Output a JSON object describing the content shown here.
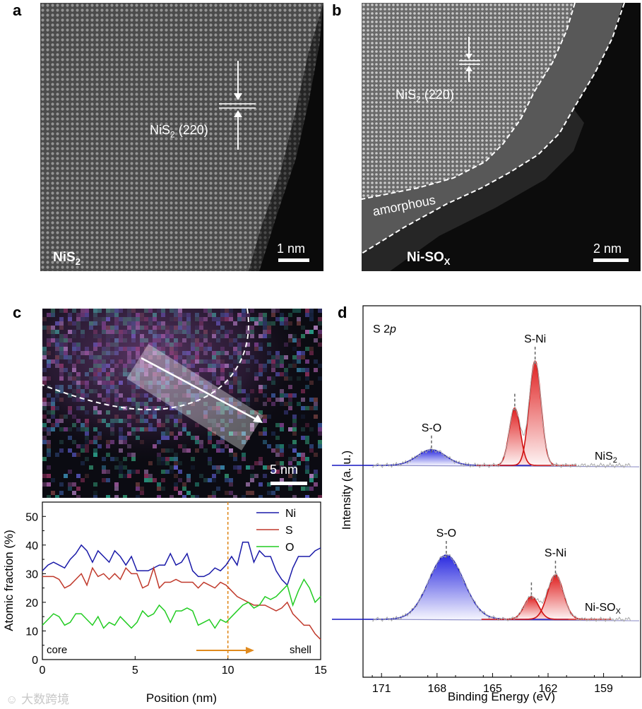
{
  "panels": {
    "a": {
      "letter": "a",
      "sample_label": "NiS",
      "sample_sub": "2",
      "plane_label": "NiS",
      "plane_sub": "2",
      "plane_index": " (220)",
      "scale_label": "1 nm"
    },
    "b": {
      "letter": "b",
      "sample_label": "Ni-SO",
      "sample_sub": "X",
      "plane_label": "NiS",
      "plane_sub": "2",
      "plane_index": " (220)",
      "region_label": "amorphous",
      "scale_label": "2 nm"
    },
    "c": {
      "letter": "c",
      "scale_label": "5 nm"
    },
    "d": {
      "letter": "d"
    }
  },
  "watermark": "大数跨境",
  "colors": {
    "ni": "#1a1aa8",
    "s": "#c0392b",
    "o": "#22cc22",
    "orange": "#e08a1e",
    "so_fill": "#2a2ae0",
    "sni_fill": "#e02020"
  },
  "chart_data": [
    {
      "type": "line",
      "xlabel": "Position (nm)",
      "ylabel": "Atomic fraction (%)",
      "xlim": [
        0,
        15
      ],
      "ylim": [
        0,
        55
      ],
      "xticks": [
        "0",
        "5",
        "10",
        "15"
      ],
      "yticks": [
        "0",
        "10",
        "20",
        "30",
        "40",
        "50"
      ],
      "annotations": {
        "left": "core",
        "right": "shell",
        "marker_x": 10
      },
      "x": [
        0,
        0.3,
        0.6,
        0.9,
        1.2,
        1.5,
        1.8,
        2.1,
        2.4,
        2.7,
        3.0,
        3.3,
        3.6,
        3.9,
        4.2,
        4.5,
        4.8,
        5.1,
        5.4,
        5.7,
        6.0,
        6.3,
        6.6,
        6.9,
        7.2,
        7.5,
        7.8,
        8.1,
        8.4,
        8.7,
        9.0,
        9.3,
        9.6,
        9.9,
        10.2,
        10.5,
        10.8,
        11.1,
        11.4,
        11.7,
        12.0,
        12.3,
        12.6,
        12.9,
        13.2,
        13.5,
        13.8,
        14.1,
        14.4,
        14.7,
        15.0
      ],
      "series": [
        {
          "name": "Ni",
          "values": [
            31,
            33,
            34,
            33,
            32,
            35,
            37,
            40,
            38,
            34,
            38,
            36,
            34,
            38,
            36,
            33,
            36,
            31,
            31,
            31,
            32,
            33,
            33,
            37,
            33,
            34,
            37,
            31,
            29,
            29,
            30,
            32,
            31,
            33,
            36,
            33,
            41,
            41,
            34,
            38,
            36,
            36,
            31,
            28,
            26,
            32,
            36,
            36,
            36,
            38,
            39
          ]
        },
        {
          "name": "S",
          "values": [
            29,
            29,
            29,
            28,
            25,
            26,
            28,
            30,
            26,
            32,
            29,
            30,
            28,
            30,
            28,
            32,
            30,
            30,
            25,
            26,
            32,
            25,
            27,
            27,
            28,
            27,
            27,
            27,
            25,
            27,
            26,
            25,
            27,
            26,
            24,
            22,
            21,
            20,
            19,
            19,
            19,
            18,
            17,
            18,
            20,
            16,
            14,
            12,
            12,
            9,
            7
          ]
        },
        {
          "name": "O",
          "values": [
            12,
            14,
            16,
            15,
            12,
            13,
            16,
            16,
            14,
            12,
            15,
            11,
            13,
            12,
            15,
            13,
            11,
            13,
            17,
            15,
            16,
            19,
            17,
            13,
            17,
            17,
            18,
            17,
            12,
            13,
            14,
            11,
            14,
            13,
            15,
            17,
            19,
            20,
            18,
            19,
            22,
            21,
            22,
            24,
            26,
            19,
            24,
            28,
            25,
            20,
            22
          ]
        }
      ]
    },
    {
      "type": "line",
      "title": "S 2p",
      "xlabel": "Binding Energy (eV)",
      "ylabel": "Intensity (a. u.)",
      "xlim": [
        172,
        157
      ],
      "xticks": [
        "171",
        "168",
        "165",
        "162",
        "159"
      ],
      "spectra": [
        {
          "name": "NiS2",
          "label": "NiS",
          "label_sub": "2",
          "peaks": [
            {
              "label": "S-O",
              "center": 168.3,
              "height": 0.15,
              "fwhm": 1.8
            },
            {
              "label": "",
              "center": 163.8,
              "height": 0.55,
              "fwhm": 0.7
            },
            {
              "label": "S-Ni",
              "center": 162.7,
              "height": 1.0,
              "fwhm": 0.75
            }
          ]
        },
        {
          "name": "Ni-SOX",
          "label": "Ni-SO",
          "label_sub": "X",
          "peaks": [
            {
              "label": "S-O",
              "center": 167.5,
              "height": 0.65,
              "fwhm": 2.2
            },
            {
              "label": "",
              "center": 162.9,
              "height": 0.23,
              "fwhm": 0.9
            },
            {
              "label": "S-Ni",
              "center": 161.6,
              "height": 0.45,
              "fwhm": 1.0
            }
          ]
        }
      ]
    }
  ]
}
